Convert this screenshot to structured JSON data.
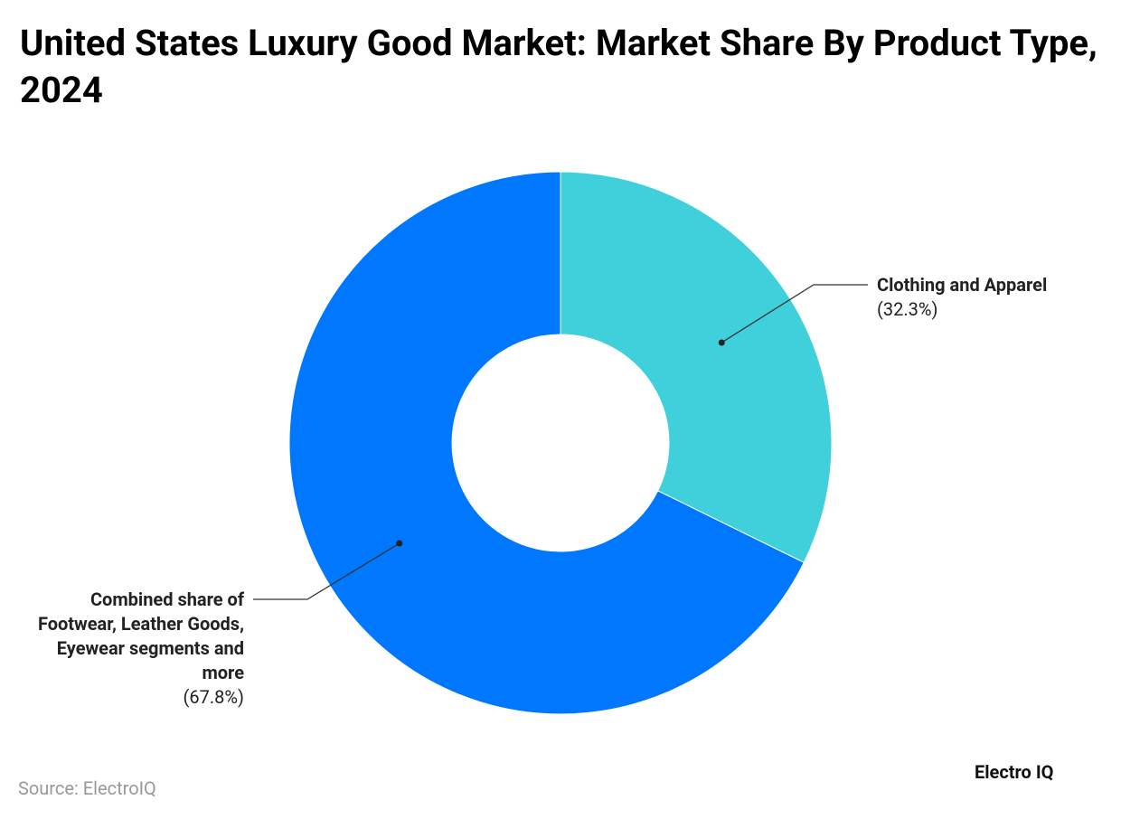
{
  "chart_data": {
    "type": "donut",
    "title": "United States Luxury Good Market: Market Share By Product Type, 2024",
    "categories": [
      "Clothing and Apparel",
      "Combined share of Footwear, Leather Goods, Eyewear segments and more"
    ],
    "values": [
      32.3,
      67.8
    ],
    "value_labels": [
      "(32.3%)",
      "(67.8%)"
    ],
    "colors": [
      "#40d0db",
      "#0077ff"
    ],
    "source": "Source: ElectroIQ",
    "brand": "Electro IQ"
  }
}
